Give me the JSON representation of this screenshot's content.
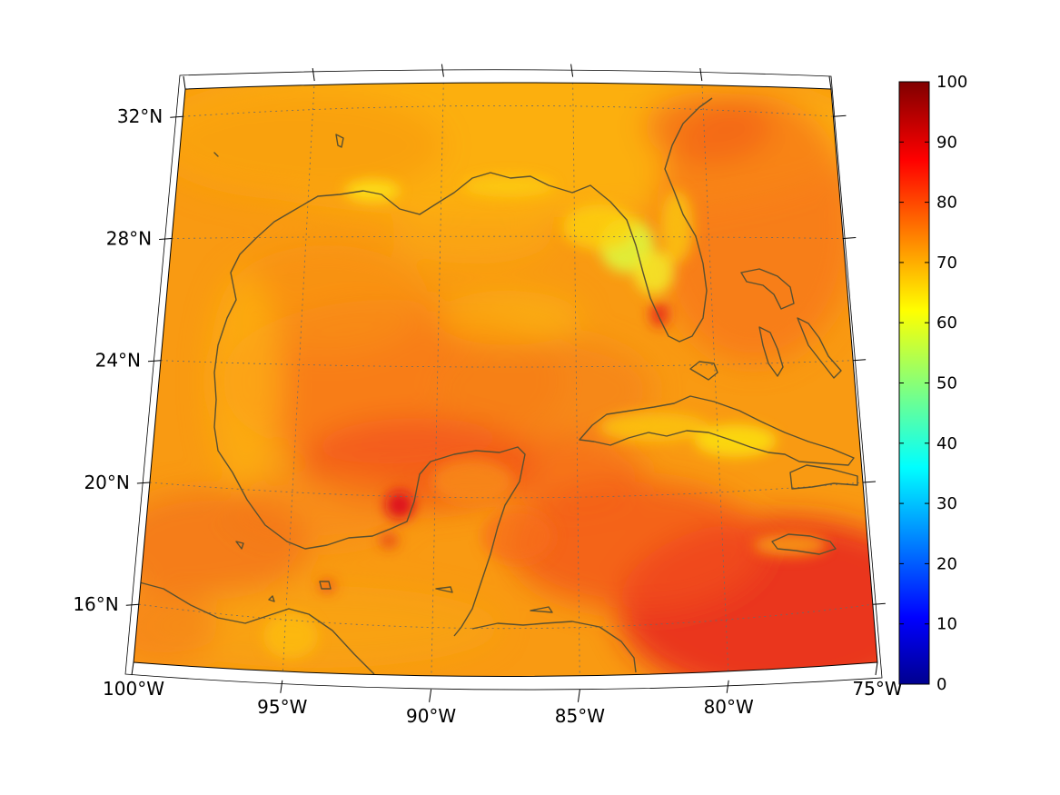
{
  "map": {
    "lon_labels": [
      "100°W",
      "95°W",
      "90°W",
      "85°W",
      "80°W",
      "75°W"
    ],
    "lat_labels": [
      "16°N",
      "20°N",
      "24°N",
      "28°N",
      "32°N"
    ],
    "lon_values": [
      -100,
      -95,
      -90,
      -85,
      -80,
      -75
    ],
    "lat_values": [
      16,
      20,
      24,
      28,
      32
    ],
    "extent": {
      "lon_min": -100,
      "lon_max": -75,
      "lat_min": 14.1,
      "lat_max": 32.9
    },
    "projection": "conic",
    "coastline_color": "#5a5030",
    "gridlines": "dotted"
  },
  "colorbar": {
    "colormap": "jet",
    "range": [
      0,
      100
    ],
    "tick_values": [
      0,
      10,
      20,
      30,
      40,
      50,
      60,
      70,
      80,
      90,
      100
    ],
    "tick_labels": [
      "0",
      "10",
      "20",
      "30",
      "40",
      "50",
      "60",
      "70",
      "80",
      "90",
      "100"
    ]
  },
  "field": {
    "typical_value": 72,
    "high_regions": [
      "western Caribbean Sea",
      "Bay of Campeche",
      "central Gulf of Mexico"
    ],
    "low_regions": [
      "Florida peninsula",
      "northern Gulf coast",
      "central Cuba"
    ]
  }
}
